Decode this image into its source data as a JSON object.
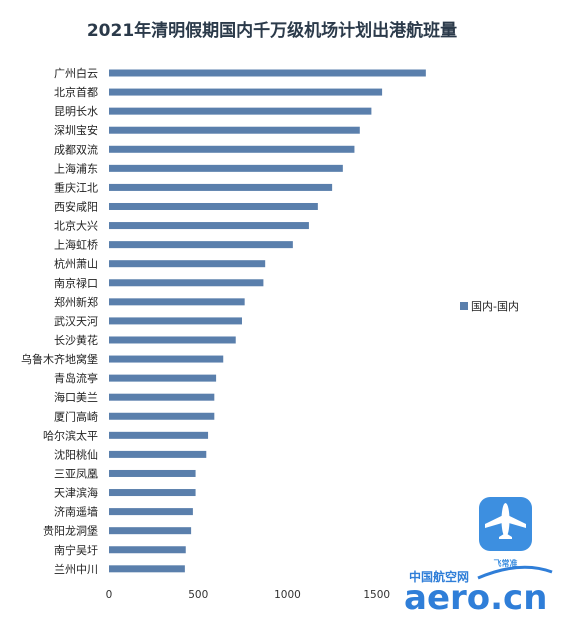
{
  "chart_data": {
    "type": "bar",
    "orientation": "horizontal",
    "title": "2021年清明假期国内千万级机场计划出港航班量",
    "categories": [
      "广州白云",
      "北京首都",
      "昆明长水",
      "深圳宝安",
      "成都双流",
      "上海浦东",
      "重庆江北",
      "西安咸阳",
      "北京大兴",
      "上海虹桥",
      "杭州萧山",
      "南京禄口",
      "郑州新郑",
      "武汉天河",
      "长沙黄花",
      "乌鲁木齐地窝堡",
      "青岛流亭",
      "海口美兰",
      "厦门高崎",
      "哈尔滨太平",
      "沈阳桃仙",
      "三亚凤凰",
      "天津滨海",
      "济南遥墙",
      "贵阳龙洞堡",
      "南宁吴圩",
      "兰州中川"
    ],
    "series": [
      {
        "name": "国内-国内",
        "values": [
          1775,
          1530,
          1470,
          1405,
          1375,
          1310,
          1250,
          1170,
          1120,
          1030,
          875,
          865,
          760,
          745,
          710,
          640,
          600,
          590,
          590,
          555,
          545,
          485,
          485,
          470,
          460,
          430,
          425
        ]
      }
    ],
    "xlim": [
      0,
      2000
    ],
    "xticks": [
      0,
      500,
      1000,
      1500
    ],
    "legend": "right",
    "grid": false,
    "colors": {
      "bar": "#5a7fac"
    }
  },
  "app_badge": {
    "label": "飞常准",
    "icon": "airplane-icon"
  },
  "watermark": {
    "cn": "中国航空网",
    "en": "aero.cn"
  }
}
